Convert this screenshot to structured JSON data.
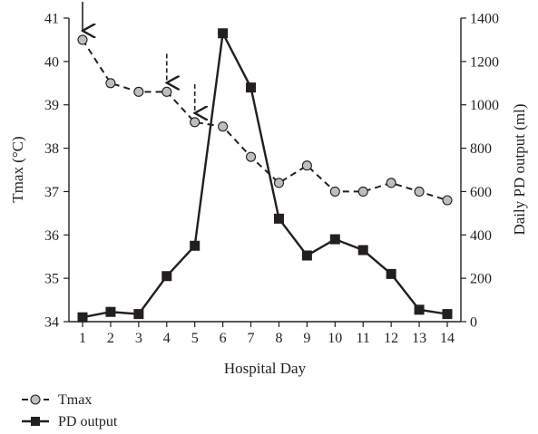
{
  "chart_data": {
    "type": "line",
    "x_title": "Hospital Day",
    "y_left_title": "Tmax (°C)",
    "y_right_title": "Daily PD output (ml)",
    "x": [
      1,
      2,
      3,
      4,
      5,
      6,
      7,
      8,
      9,
      10,
      11,
      12,
      13,
      14
    ],
    "y_left_range": [
      34,
      41
    ],
    "y_left_ticks": [
      34,
      35,
      36,
      37,
      38,
      39,
      40,
      41
    ],
    "y_right_range": [
      0,
      1400
    ],
    "y_right_ticks": [
      0,
      200,
      400,
      600,
      800,
      1000,
      1200,
      1400
    ],
    "series": [
      {
        "name": "Tmax",
        "axis": "left",
        "style": "dashed, grey circle markers",
        "values": [
          40.5,
          39.5,
          39.3,
          39.3,
          38.6,
          38.5,
          37.8,
          37.2,
          37.6,
          37.0,
          37.0,
          37.2,
          37.0,
          36.8
        ]
      },
      {
        "name": "PD output",
        "axis": "right",
        "style": "solid, black square markers",
        "values": [
          20,
          45,
          35,
          210,
          350,
          1330,
          1080,
          475,
          305,
          380,
          330,
          220,
          55,
          35
        ]
      }
    ],
    "annotations": [
      {
        "type": "arrow",
        "style": "solid",
        "x": 1
      },
      {
        "type": "arrow",
        "style": "dashed",
        "x": 4
      },
      {
        "type": "arrow",
        "style": "dashed",
        "x": 5
      }
    ],
    "grid": false,
    "legend_position": "bottom-left"
  }
}
